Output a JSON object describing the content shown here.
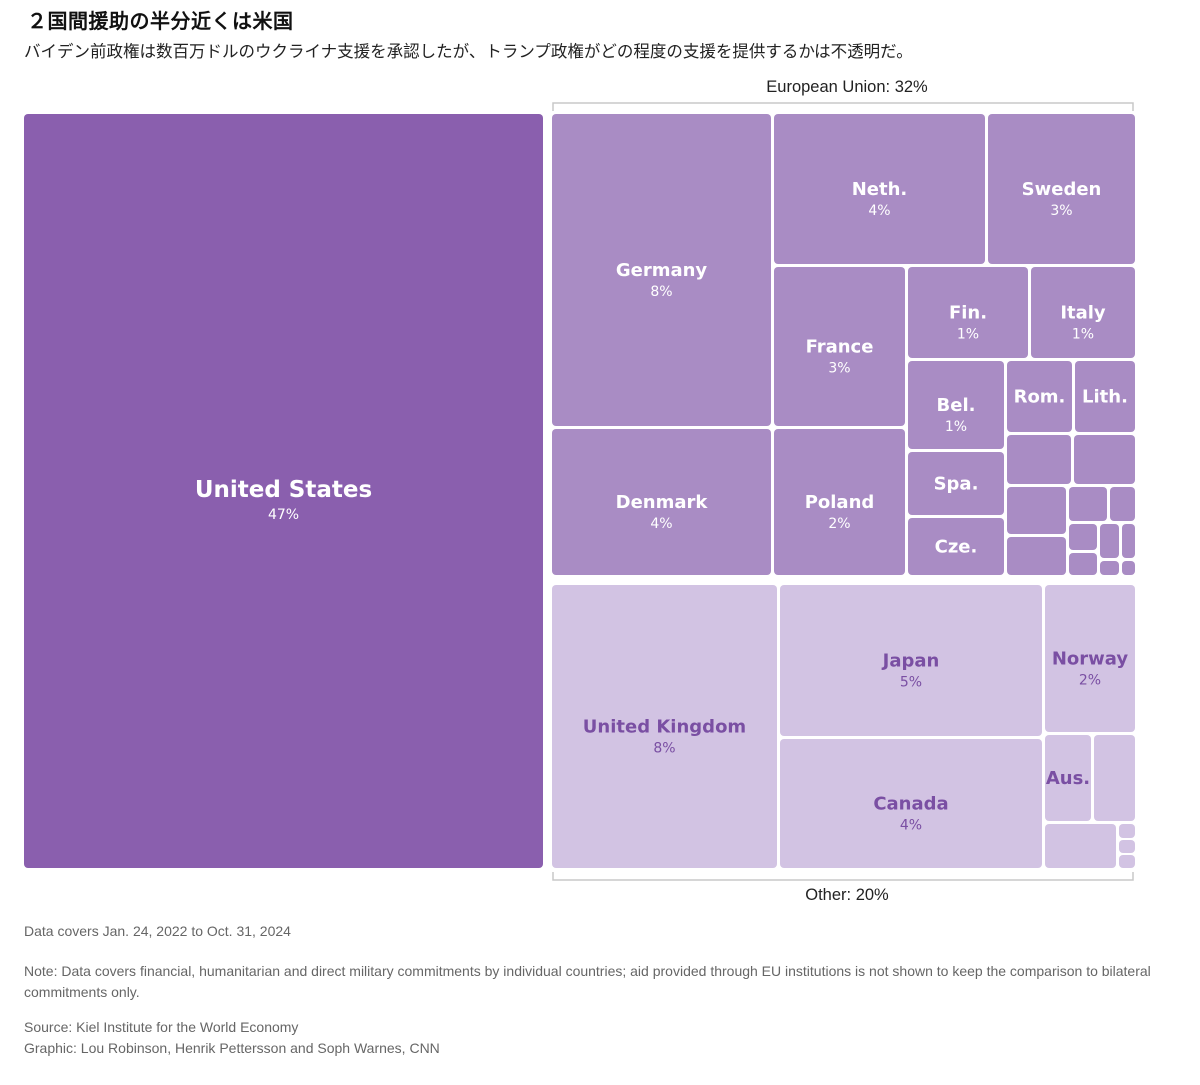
{
  "header": {
    "title": "２国間援助の半分近くは米国",
    "subtitle": "バイデン前政権は数百万ドルのウクライナ支援を承認したが、トランプ政権がどの程度の支援を提供するかは不透明だ。"
  },
  "chart_data": {
    "type": "treemap",
    "title": "２国間援助の半分近くは米国",
    "subtitle": "バイデン前政権は数百万ドルのウクライナ支援を承認したが、トランプ政権がどの程度の支援を提供するかは不透明だ。",
    "units": "%",
    "colors": {
      "united_states": "#8a5fae",
      "european_union": "#a98cc4",
      "other": "#d2c3e3",
      "label_dark": "#ffffff",
      "label_light": "#7a4fa3",
      "bracket": "#c8c8c8"
    },
    "groups": [
      {
        "name": "",
        "bracket_label": "",
        "color_key": "united_states",
        "items": [
          {
            "label": "United States",
            "value": 47,
            "value_label": "47%"
          }
        ]
      },
      {
        "name": "European Union",
        "bracket_label": "European Union: 32%",
        "value": 32,
        "color_key": "european_union",
        "items": [
          {
            "label": "Germany",
            "value": 8,
            "value_label": "8%"
          },
          {
            "label": "Denmark",
            "value": 4,
            "value_label": "4%"
          },
          {
            "label": "Neth.",
            "value": 4,
            "value_label": "4%"
          },
          {
            "label": "Sweden",
            "value": 3,
            "value_label": "3%"
          },
          {
            "label": "France",
            "value": 3,
            "value_label": "3%"
          },
          {
            "label": "Poland",
            "value": 2,
            "value_label": "2%"
          },
          {
            "label": "Fin.",
            "value": 1,
            "value_label": "1%"
          },
          {
            "label": "Italy",
            "value": 1,
            "value_label": "1%"
          },
          {
            "label": "Bel.",
            "value": 1,
            "value_label": "1%"
          },
          {
            "label": "Rom.",
            "value": null,
            "value_label": ""
          },
          {
            "label": "Lith.",
            "value": null,
            "value_label": ""
          },
          {
            "label": "Spa.",
            "value": null,
            "value_label": ""
          },
          {
            "label": "Cze.",
            "value": null,
            "value_label": ""
          },
          {
            "label": "",
            "value": null,
            "value_label": ""
          },
          {
            "label": "",
            "value": null,
            "value_label": ""
          },
          {
            "label": "",
            "value": null,
            "value_label": ""
          },
          {
            "label": "",
            "value": null,
            "value_label": ""
          },
          {
            "label": "",
            "value": null,
            "value_label": ""
          },
          {
            "label": "",
            "value": null,
            "value_label": ""
          },
          {
            "label": "",
            "value": null,
            "value_label": ""
          },
          {
            "label": "",
            "value": null,
            "value_label": ""
          },
          {
            "label": "",
            "value": null,
            "value_label": ""
          },
          {
            "label": "",
            "value": null,
            "value_label": ""
          },
          {
            "label": "",
            "value": null,
            "value_label": ""
          },
          {
            "label": "",
            "value": null,
            "value_label": ""
          },
          {
            "label": "",
            "value": null,
            "value_label": ""
          }
        ]
      },
      {
        "name": "Other",
        "bracket_label": "Other: 20%",
        "value": 20,
        "color_key": "other",
        "items": [
          {
            "label": "United Kingdom",
            "value": 8,
            "value_label": "8%"
          },
          {
            "label": "Japan",
            "value": 5,
            "value_label": "5%"
          },
          {
            "label": "Canada",
            "value": 4,
            "value_label": "4%"
          },
          {
            "label": "Norway",
            "value": 2,
            "value_label": "2%"
          },
          {
            "label": "Aus.",
            "value": null,
            "value_label": ""
          },
          {
            "label": "",
            "value": null,
            "value_label": ""
          },
          {
            "label": "",
            "value": null,
            "value_label": ""
          },
          {
            "label": "",
            "value": null,
            "value_label": ""
          },
          {
            "label": "",
            "value": null,
            "value_label": ""
          },
          {
            "label": "",
            "value": null,
            "value_label": ""
          }
        ]
      }
    ]
  },
  "footer": {
    "date_note": "Data covers Jan. 24, 2022 to Oct. 31, 2024",
    "method_note": "Note: Data covers financial, humanitarian and direct military commitments by individual countries; aid provided through EU institutions is not shown to keep the comparison to bilateral commitments only.",
    "source": "Source: Kiel Institute for the World Economy",
    "graphic": "Graphic: Lou Robinson, Henrik Pettersson and Soph Warnes, CNN"
  }
}
